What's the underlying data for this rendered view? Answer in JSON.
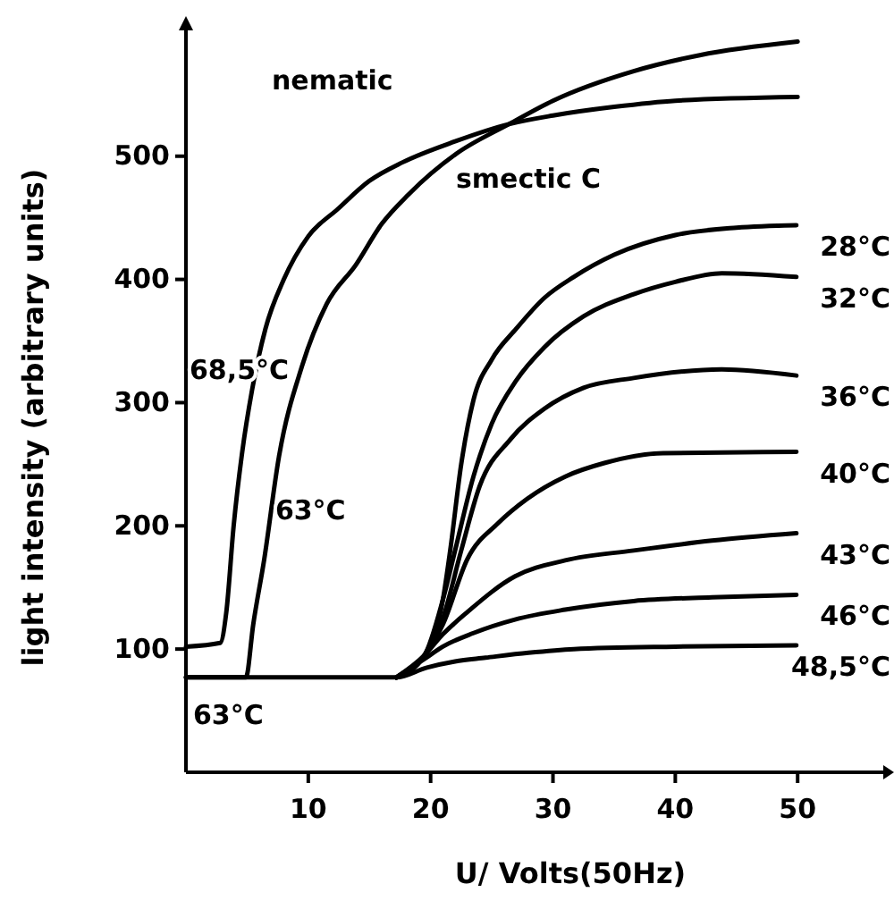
{
  "chart_data": {
    "type": "line",
    "xlabel": "U/ Volts(50Hz)",
    "ylabel": "light intensity (arbitrary units)",
    "xlim": [
      0,
      57
    ],
    "ylim": [
      0,
      605
    ],
    "xticks": [
      10,
      20,
      30,
      40,
      50
    ],
    "yticks": [
      100,
      200,
      300,
      400,
      500
    ],
    "grid": false,
    "legend": false,
    "marker": "none",
    "line_style": "solid",
    "series": [
      {
        "color": "#000000",
        "x": [
          0,
          2.8,
          3.3,
          3.9,
          4.6,
          5.4,
          6.5,
          8,
          10,
          12.4,
          15,
          17.7,
          22,
          26.4,
          30,
          35,
          40,
          50
        ],
        "values": [
          102,
          105,
          130,
          200,
          260,
          310,
          360,
          400,
          435,
          457,
          480,
          495,
          512,
          526,
          533,
          540,
          545,
          548
        ]
      },
      {
        "color": "#000000",
        "x": [
          0,
          4.9,
          5.5,
          6.4,
          7.6,
          9.5,
          11.5,
          13.9,
          16,
          18.2,
          22.1,
          26.4,
          30,
          36.6,
          42,
          50
        ],
        "values": [
          77,
          77,
          120,
          173,
          256,
          330,
          380,
          412,
          445,
          469,
          502,
          526,
          545,
          569,
          582,
          593
        ]
      },
      {
        "name": "28°C",
        "color": "#000000",
        "x": [
          17.2,
          19.5,
          21,
          21.6,
          22.5,
          23.5,
          25,
          27,
          29.3,
          31.7,
          35,
          40,
          45,
          49.9
        ],
        "values": [
          77,
          95,
          140,
          180,
          250,
          302,
          335,
          360,
          385,
          402,
          420,
          436,
          442,
          444
        ]
      },
      {
        "name": "32°C",
        "color": "#000000",
        "x": [
          17.2,
          19.5,
          21,
          22,
          23.5,
          25,
          27,
          29.3,
          32.5,
          36.6,
          40,
          43.8,
          49.9
        ],
        "values": [
          77,
          95,
          140,
          180,
          240,
          283,
          318,
          345,
          370,
          388,
          398,
          405,
          402
        ]
      },
      {
        "name": "36°C",
        "color": "#000000",
        "x": [
          17.2,
          19.5,
          21,
          22.5,
          24,
          26.5,
          29.3,
          32.5,
          36.6,
          43.8,
          49.9
        ],
        "values": [
          77,
          95,
          125,
          180,
          232,
          270,
          295,
          312,
          320,
          327,
          322
        ]
      },
      {
        "name": "40°C",
        "color": "#000000",
        "x": [
          17.2,
          19.5,
          21,
          23,
          25.5,
          27.9,
          31,
          34.2,
          39,
          49.9
        ],
        "values": [
          77,
          95,
          120,
          173,
          202,
          222,
          240,
          251,
          259,
          260
        ]
      },
      {
        "name": "43°C",
        "color": "#000000",
        "x": [
          17.2,
          19.5,
          21,
          23,
          26.9,
          31,
          36.6,
          43,
          49.9
        ],
        "values": [
          77,
          95,
          112,
          130,
          159,
          172,
          180,
          188,
          194
        ]
      },
      {
        "name": "46°C",
        "color": "#000000",
        "x": [
          17.2,
          19.5,
          21,
          23.5,
          26.9,
          31,
          36.6,
          43,
          49.9
        ],
        "values": [
          77,
          92,
          102,
          113,
          124,
          132,
          139,
          142,
          144
        ]
      },
      {
        "name": "48,5°C",
        "color": "#000000",
        "x": [
          0,
          17.2,
          19.7,
          22,
          24.5,
          28,
          31.7,
          40,
          49.9
        ],
        "values": [
          77,
          77,
          85,
          90,
          93,
          97,
          100,
          102,
          103
        ]
      }
    ],
    "annotations": [
      "nematic",
      "smectic C",
      "68,5°C",
      {
        "text": "63°C",
        "x": 7.3,
        "y": 205
      },
      "63°C"
    ]
  }
}
